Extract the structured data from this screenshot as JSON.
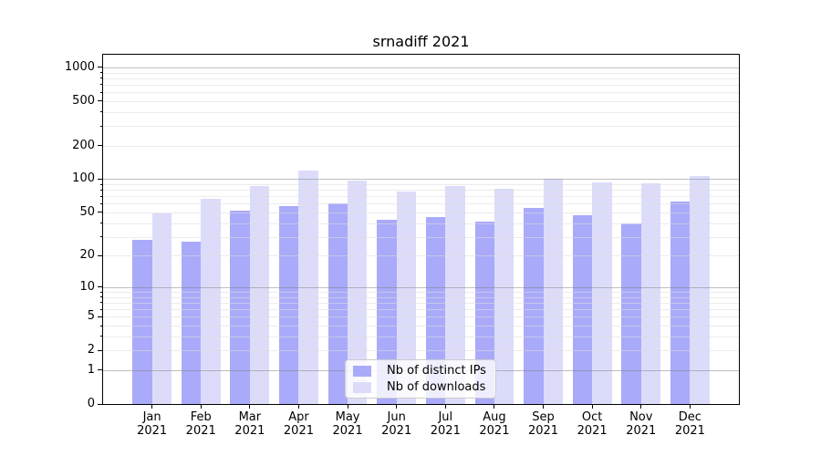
{
  "figure": {
    "background": "#ffffff"
  },
  "chart_data": {
    "type": "bar",
    "title": "srnadiff 2021",
    "y_scale": "log1p",
    "ylim": [
      0,
      1291
    ],
    "xlabel": "",
    "ylabel": "",
    "categories": [
      "Jan 2021",
      "Feb 2021",
      "Mar 2021",
      "Apr 2021",
      "May 2021",
      "Jun 2021",
      "Jul 2021",
      "Aug 2021",
      "Sep 2021",
      "Oct 2021",
      "Nov 2021",
      "Dec 2021"
    ],
    "series": [
      {
        "name": "Nb of distinct IPs",
        "color": "#aaaafa",
        "values": [
          28,
          27,
          52,
          57,
          60,
          43,
          45,
          41,
          55,
          47,
          40,
          63
        ]
      },
      {
        "name": "Nb of downloads",
        "color": "#dcdcfa",
        "values": [
          49,
          66,
          86,
          120,
          98,
          77,
          87,
          82,
          101,
          93,
          92,
          107
        ]
      }
    ],
    "y_ticks": [
      1000,
      500,
      200,
      100,
      50,
      20,
      10,
      5,
      2,
      1,
      0
    ],
    "major_gridline_values": [
      1,
      10,
      100,
      1000
    ],
    "minor_gridlines": "steps 2-9 within each decade",
    "grid": true,
    "legend_position": "inside-bottom-center",
    "axis_color": "#000000",
    "text_color": "#000000",
    "grid_major_color": "rgba(128,128,128,0.5)",
    "grid_minor_color": "rgba(220,220,220,0.55)"
  }
}
